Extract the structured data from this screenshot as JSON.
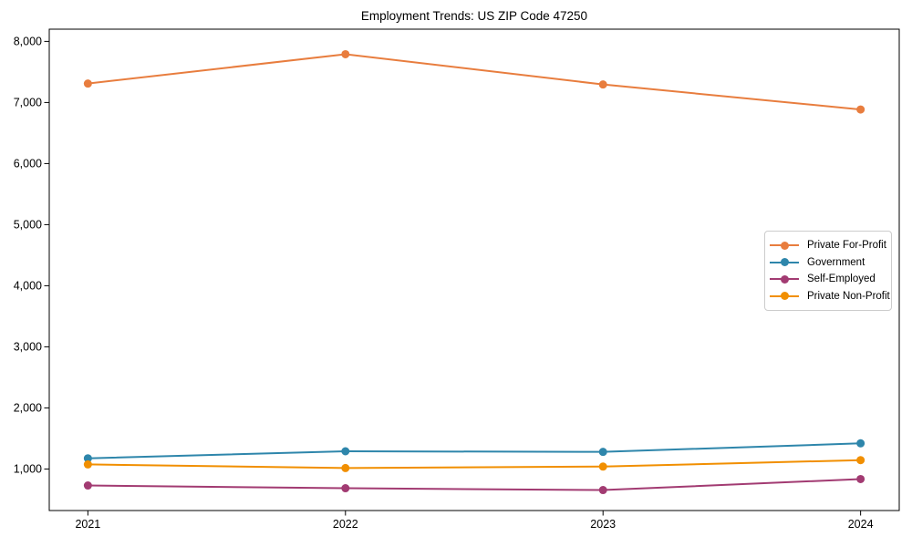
{
  "chart_data": {
    "type": "line",
    "title": "Employment Trends: US ZIP Code 47250",
    "xlabel": "",
    "ylabel": "",
    "categories": [
      "2021",
      "2022",
      "2023",
      "2024"
    ],
    "series": [
      {
        "name": "Private For-Profit",
        "color": "#E87D3E",
        "values": [
          7310,
          7790,
          7295,
          6885
        ]
      },
      {
        "name": "Government",
        "color": "#2E86AB",
        "values": [
          1175,
          1290,
          1280,
          1420
        ]
      },
      {
        "name": "Self-Employed",
        "color": "#A23B72",
        "values": [
          730,
          685,
          655,
          835
        ]
      },
      {
        "name": "Private Non-Profit",
        "color": "#F18F01",
        "values": [
          1075,
          1015,
          1040,
          1145
        ]
      }
    ],
    "yticks": [
      1000,
      2000,
      3000,
      4000,
      5000,
      6000,
      7000,
      8000
    ],
    "ytick_labels": [
      "1,000",
      "2,000",
      "3,000",
      "4,000",
      "5,000",
      "6,000",
      "7,000",
      "8,000"
    ],
    "ylim": [
      320,
      8200
    ],
    "xlim": [
      -0.15,
      3.15
    ],
    "grid": false,
    "legend_position": "center right",
    "marker": "circle",
    "axis_color": "#000000"
  }
}
